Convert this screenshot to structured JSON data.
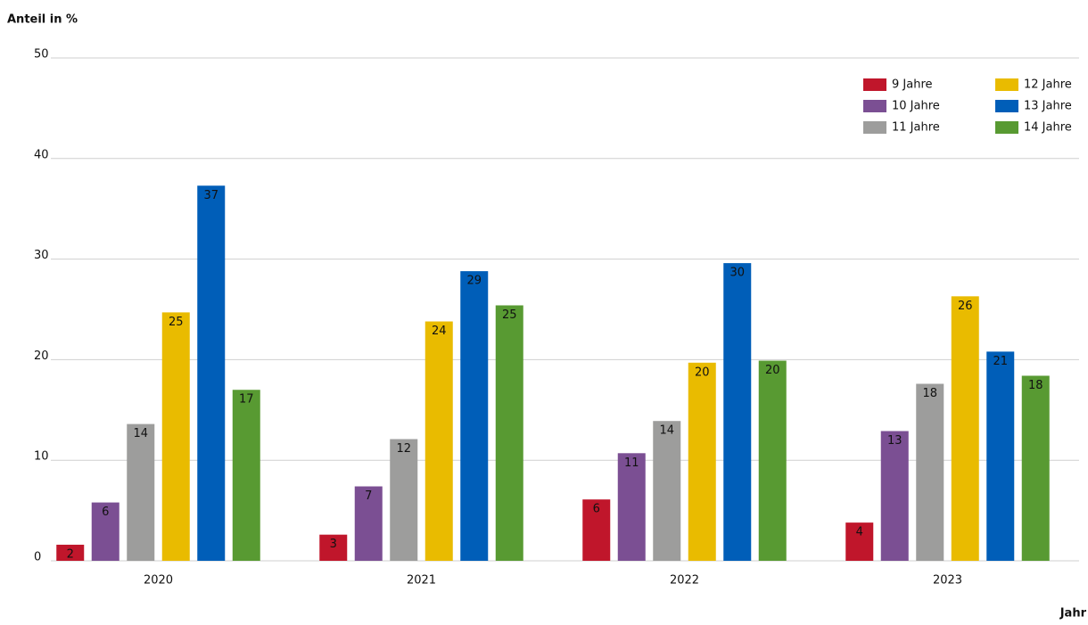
{
  "chart_data": {
    "type": "bar",
    "y_label": "Anteil in %",
    "x_label": "Jahr",
    "categories": [
      "2020",
      "2021",
      "2022",
      "2023"
    ],
    "series": [
      {
        "name": "9 Jahre",
        "color": "#c0162b",
        "values": [
          1.6,
          2.6,
          6.1,
          3.8
        ],
        "value_labels": [
          "2",
          "3",
          "6",
          "4"
        ]
      },
      {
        "name": "10 Jahre",
        "color": "#7b4f93",
        "values": [
          5.8,
          7.4,
          10.7,
          12.9
        ],
        "value_labels": [
          "6",
          "7",
          "11",
          "13"
        ]
      },
      {
        "name": "11 Jahre",
        "color": "#9d9d9c",
        "values": [
          13.6,
          12.1,
          13.9,
          17.6
        ],
        "value_labels": [
          "14",
          "12",
          "14",
          "18"
        ]
      },
      {
        "name": "12 Jahre",
        "color": "#e9bb00",
        "values": [
          24.7,
          23.8,
          19.7,
          26.3
        ],
        "value_labels": [
          "25",
          "24",
          "20",
          "26"
        ]
      },
      {
        "name": "13 Jahre",
        "color": "#005eb8",
        "values": [
          37.3,
          28.8,
          29.6,
          20.8
        ],
        "value_labels": [
          "37",
          "29",
          "30",
          "21"
        ]
      },
      {
        "name": "14 Jahre",
        "color": "#589a32",
        "values": [
          17.0,
          25.4,
          19.9,
          18.4
        ],
        "value_labels": [
          "17",
          "25",
          "20",
          "18"
        ]
      }
    ],
    "ylim": [
      0,
      50
    ],
    "yticks": [
      0,
      10,
      20,
      30,
      40,
      50
    ],
    "grid": true
  }
}
